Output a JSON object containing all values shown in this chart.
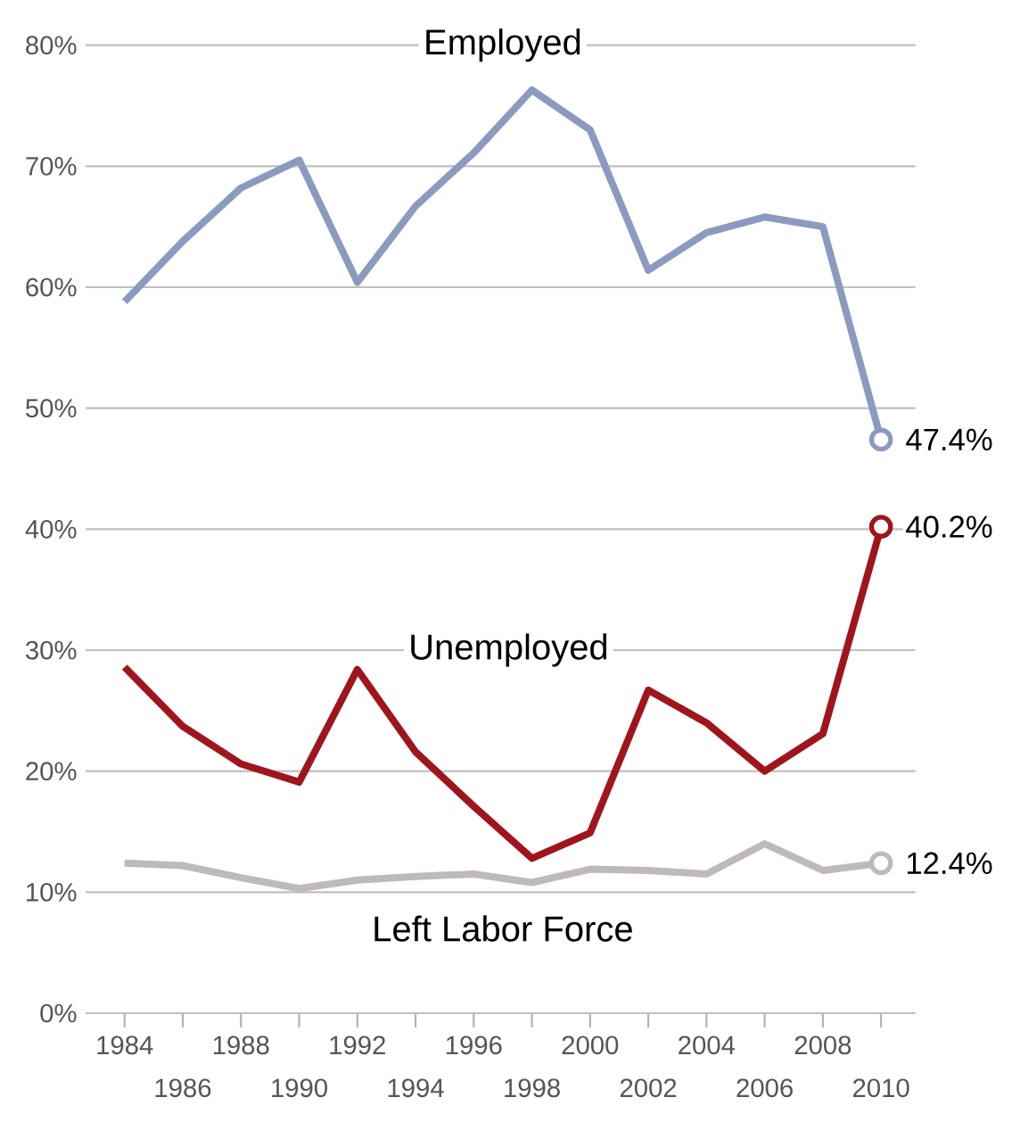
{
  "chart_data": {
    "type": "line",
    "categories": [
      "1984",
      "1986",
      "1988",
      "1990",
      "1992",
      "1994",
      "1996",
      "1998",
      "2000",
      "2002",
      "2004",
      "2006",
      "2008",
      "2010"
    ],
    "series": [
      {
        "name": "Employed",
        "color": "#8a9bbf",
        "values": [
          58.8,
          63.8,
          68.2,
          70.5,
          60.4,
          66.7,
          71.1,
          76.3,
          73.0,
          61.4,
          64.5,
          65.8,
          65.0,
          47.4
        ],
        "value_labels": [
          null,
          null,
          null,
          null,
          null,
          null,
          null,
          null,
          null,
          null,
          null,
          null,
          null,
          "47.4%"
        ]
      },
      {
        "name": "Unemployed",
        "color": "#a0151c",
        "values": [
          28.6,
          23.7,
          20.6,
          19.1,
          28.4,
          21.6,
          17.1,
          12.8,
          14.9,
          26.7,
          24.0,
          20.0,
          23.1,
          40.2
        ],
        "value_labels": [
          null,
          null,
          null,
          null,
          null,
          null,
          null,
          null,
          null,
          null,
          null,
          null,
          null,
          "40.2%"
        ]
      },
      {
        "name": "Left Labor Force",
        "color": "#c0b9ba",
        "values": [
          12.4,
          12.2,
          11.2,
          10.3,
          11.0,
          11.3,
          11.5,
          10.8,
          11.9,
          11.8,
          11.5,
          14.0,
          11.8,
          12.4
        ],
        "value_labels": [
          null,
          null,
          null,
          null,
          null,
          null,
          null,
          null,
          null,
          null,
          null,
          null,
          null,
          "12.4%"
        ]
      }
    ],
    "ylim": [
      0,
      80
    ],
    "yticks": [
      {
        "value": 0,
        "label": "0%"
      },
      {
        "value": 10,
        "label": "10%"
      },
      {
        "value": 20,
        "label": "20%"
      },
      {
        "value": 30,
        "label": "30%"
      },
      {
        "value": 40,
        "label": "40%"
      },
      {
        "value": 50,
        "label": "50%"
      },
      {
        "value": 60,
        "label": "60%"
      },
      {
        "value": 70,
        "label": "70%"
      },
      {
        "value": 80,
        "label": "80%"
      }
    ],
    "grid": "y"
  }
}
